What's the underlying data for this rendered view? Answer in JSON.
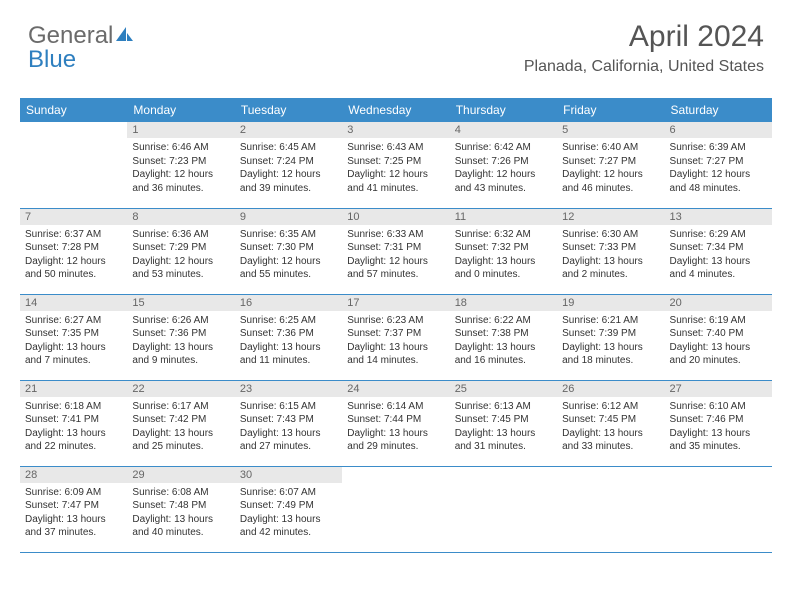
{
  "logo": {
    "text1": "General",
    "text2": "Blue"
  },
  "header": {
    "month": "April 2024",
    "location": "Planada, California, United States"
  },
  "colors": {
    "header_bg": "#3b8cc9",
    "header_text": "#ffffff",
    "daynum_bg": "#e8e8e8",
    "daynum_text": "#666666",
    "body_text": "#333333",
    "border": "#3b8cc9",
    "logo_gray": "#6b6b6b",
    "logo_blue": "#2e7fbf"
  },
  "daynames": [
    "Sunday",
    "Monday",
    "Tuesday",
    "Wednesday",
    "Thursday",
    "Friday",
    "Saturday"
  ],
  "weeks": [
    [
      null,
      {
        "d": "1",
        "sr": "Sunrise: 6:46 AM",
        "ss": "Sunset: 7:23 PM",
        "dl1": "Daylight: 12 hours",
        "dl2": "and 36 minutes."
      },
      {
        "d": "2",
        "sr": "Sunrise: 6:45 AM",
        "ss": "Sunset: 7:24 PM",
        "dl1": "Daylight: 12 hours",
        "dl2": "and 39 minutes."
      },
      {
        "d": "3",
        "sr": "Sunrise: 6:43 AM",
        "ss": "Sunset: 7:25 PM",
        "dl1": "Daylight: 12 hours",
        "dl2": "and 41 minutes."
      },
      {
        "d": "4",
        "sr": "Sunrise: 6:42 AM",
        "ss": "Sunset: 7:26 PM",
        "dl1": "Daylight: 12 hours",
        "dl2": "and 43 minutes."
      },
      {
        "d": "5",
        "sr": "Sunrise: 6:40 AM",
        "ss": "Sunset: 7:27 PM",
        "dl1": "Daylight: 12 hours",
        "dl2": "and 46 minutes."
      },
      {
        "d": "6",
        "sr": "Sunrise: 6:39 AM",
        "ss": "Sunset: 7:27 PM",
        "dl1": "Daylight: 12 hours",
        "dl2": "and 48 minutes."
      }
    ],
    [
      {
        "d": "7",
        "sr": "Sunrise: 6:37 AM",
        "ss": "Sunset: 7:28 PM",
        "dl1": "Daylight: 12 hours",
        "dl2": "and 50 minutes."
      },
      {
        "d": "8",
        "sr": "Sunrise: 6:36 AM",
        "ss": "Sunset: 7:29 PM",
        "dl1": "Daylight: 12 hours",
        "dl2": "and 53 minutes."
      },
      {
        "d": "9",
        "sr": "Sunrise: 6:35 AM",
        "ss": "Sunset: 7:30 PM",
        "dl1": "Daylight: 12 hours",
        "dl2": "and 55 minutes."
      },
      {
        "d": "10",
        "sr": "Sunrise: 6:33 AM",
        "ss": "Sunset: 7:31 PM",
        "dl1": "Daylight: 12 hours",
        "dl2": "and 57 minutes."
      },
      {
        "d": "11",
        "sr": "Sunrise: 6:32 AM",
        "ss": "Sunset: 7:32 PM",
        "dl1": "Daylight: 13 hours",
        "dl2": "and 0 minutes."
      },
      {
        "d": "12",
        "sr": "Sunrise: 6:30 AM",
        "ss": "Sunset: 7:33 PM",
        "dl1": "Daylight: 13 hours",
        "dl2": "and 2 minutes."
      },
      {
        "d": "13",
        "sr": "Sunrise: 6:29 AM",
        "ss": "Sunset: 7:34 PM",
        "dl1": "Daylight: 13 hours",
        "dl2": "and 4 minutes."
      }
    ],
    [
      {
        "d": "14",
        "sr": "Sunrise: 6:27 AM",
        "ss": "Sunset: 7:35 PM",
        "dl1": "Daylight: 13 hours",
        "dl2": "and 7 minutes."
      },
      {
        "d": "15",
        "sr": "Sunrise: 6:26 AM",
        "ss": "Sunset: 7:36 PM",
        "dl1": "Daylight: 13 hours",
        "dl2": "and 9 minutes."
      },
      {
        "d": "16",
        "sr": "Sunrise: 6:25 AM",
        "ss": "Sunset: 7:36 PM",
        "dl1": "Daylight: 13 hours",
        "dl2": "and 11 minutes."
      },
      {
        "d": "17",
        "sr": "Sunrise: 6:23 AM",
        "ss": "Sunset: 7:37 PM",
        "dl1": "Daylight: 13 hours",
        "dl2": "and 14 minutes."
      },
      {
        "d": "18",
        "sr": "Sunrise: 6:22 AM",
        "ss": "Sunset: 7:38 PM",
        "dl1": "Daylight: 13 hours",
        "dl2": "and 16 minutes."
      },
      {
        "d": "19",
        "sr": "Sunrise: 6:21 AM",
        "ss": "Sunset: 7:39 PM",
        "dl1": "Daylight: 13 hours",
        "dl2": "and 18 minutes."
      },
      {
        "d": "20",
        "sr": "Sunrise: 6:19 AM",
        "ss": "Sunset: 7:40 PM",
        "dl1": "Daylight: 13 hours",
        "dl2": "and 20 minutes."
      }
    ],
    [
      {
        "d": "21",
        "sr": "Sunrise: 6:18 AM",
        "ss": "Sunset: 7:41 PM",
        "dl1": "Daylight: 13 hours",
        "dl2": "and 22 minutes."
      },
      {
        "d": "22",
        "sr": "Sunrise: 6:17 AM",
        "ss": "Sunset: 7:42 PM",
        "dl1": "Daylight: 13 hours",
        "dl2": "and 25 minutes."
      },
      {
        "d": "23",
        "sr": "Sunrise: 6:15 AM",
        "ss": "Sunset: 7:43 PM",
        "dl1": "Daylight: 13 hours",
        "dl2": "and 27 minutes."
      },
      {
        "d": "24",
        "sr": "Sunrise: 6:14 AM",
        "ss": "Sunset: 7:44 PM",
        "dl1": "Daylight: 13 hours",
        "dl2": "and 29 minutes."
      },
      {
        "d": "25",
        "sr": "Sunrise: 6:13 AM",
        "ss": "Sunset: 7:45 PM",
        "dl1": "Daylight: 13 hours",
        "dl2": "and 31 minutes."
      },
      {
        "d": "26",
        "sr": "Sunrise: 6:12 AM",
        "ss": "Sunset: 7:45 PM",
        "dl1": "Daylight: 13 hours",
        "dl2": "and 33 minutes."
      },
      {
        "d": "27",
        "sr": "Sunrise: 6:10 AM",
        "ss": "Sunset: 7:46 PM",
        "dl1": "Daylight: 13 hours",
        "dl2": "and 35 minutes."
      }
    ],
    [
      {
        "d": "28",
        "sr": "Sunrise: 6:09 AM",
        "ss": "Sunset: 7:47 PM",
        "dl1": "Daylight: 13 hours",
        "dl2": "and 37 minutes."
      },
      {
        "d": "29",
        "sr": "Sunrise: 6:08 AM",
        "ss": "Sunset: 7:48 PM",
        "dl1": "Daylight: 13 hours",
        "dl2": "and 40 minutes."
      },
      {
        "d": "30",
        "sr": "Sunrise: 6:07 AM",
        "ss": "Sunset: 7:49 PM",
        "dl1": "Daylight: 13 hours",
        "dl2": "and 42 minutes."
      },
      null,
      null,
      null,
      null
    ]
  ]
}
